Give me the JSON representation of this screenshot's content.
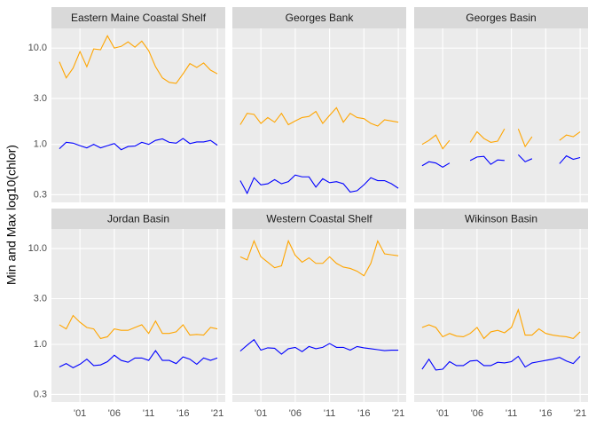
{
  "chart_data": [
    {
      "type": "line",
      "title": "Eastern Maine Coastal Shelf",
      "ylabel": "Min and Max log10(chlor)",
      "log_y": true,
      "grid": true,
      "x": [
        1998,
        1999,
        2000,
        2001,
        2002,
        2003,
        2004,
        2005,
        2006,
        2007,
        2008,
        2009,
        2010,
        2011,
        2012,
        2013,
        2014,
        2015,
        2016,
        2017,
        2018,
        2019,
        2020,
        2021
      ],
      "xlim": [
        1996.85,
        2022.15
      ],
      "xticks": [
        {
          "value": 2001,
          "label": "'01"
        },
        {
          "value": 2006,
          "label": "'06"
        },
        {
          "value": 2011,
          "label": "'11"
        },
        {
          "value": 2016,
          "label": "'16"
        },
        {
          "value": 2021,
          "label": "'21"
        }
      ],
      "ylim": [
        0.25,
        16
      ],
      "yticks": [
        0.3,
        {
          "value": 1,
          "label": "1.0"
        },
        {
          "value": 3,
          "label": "3.0"
        },
        {
          "value": 10,
          "label": "10.0"
        }
      ],
      "series": [
        {
          "color": "#ffa500",
          "values": [
            7.2,
            4.9,
            6.2,
            9.2,
            6.4,
            9.8,
            9.6,
            13.4,
            10.0,
            10.4,
            11.6,
            10.2,
            11.8,
            9.4,
            6.4,
            4.9,
            4.4,
            4.3,
            5.4,
            6.9,
            6.3,
            7.0,
            5.9,
            5.4
          ]
        },
        {
          "color": "#0000ff",
          "values": [
            0.9,
            1.05,
            1.03,
            0.97,
            0.92,
            1.0,
            0.92,
            0.97,
            1.02,
            0.88,
            0.95,
            0.96,
            1.05,
            1.0,
            1.1,
            1.14,
            1.05,
            1.03,
            1.15,
            1.02,
            1.06,
            1.06,
            1.1,
            0.98
          ]
        }
      ]
    },
    {
      "type": "line",
      "title": "Georges Bank",
      "log_y": true,
      "grid": true,
      "x": [
        1998,
        1999,
        2000,
        2001,
        2002,
        2003,
        2004,
        2005,
        2006,
        2007,
        2008,
        2009,
        2010,
        2011,
        2012,
        2013,
        2014,
        2015,
        2016,
        2017,
        2018,
        2019,
        2020,
        2021
      ],
      "xlim": [
        1996.85,
        2022.15
      ],
      "xticks": [
        {
          "value": 2001,
          "label": "'01"
        },
        {
          "value": 2006,
          "label": "'06"
        },
        {
          "value": 2011,
          "label": "'11"
        },
        {
          "value": 2016,
          "label": "'16"
        },
        {
          "value": 2021,
          "label": "'21"
        }
      ],
      "ylim": [
        0.25,
        16
      ],
      "yticks": [
        0.3,
        {
          "value": 1,
          "label": "1.0"
        },
        {
          "value": 3,
          "label": "3.0"
        },
        {
          "value": 10,
          "label": "10.0"
        }
      ],
      "series": [
        {
          "color": "#ffa500",
          "values": [
            1.6,
            2.1,
            2.05,
            1.65,
            1.9,
            1.7,
            2.1,
            1.6,
            1.75,
            1.9,
            1.95,
            2.2,
            1.65,
            2.0,
            2.4,
            1.7,
            2.1,
            1.9,
            1.85,
            1.65,
            1.55,
            1.8,
            1.75,
            1.7
          ]
        },
        {
          "color": "#0000ff",
          "values": [
            0.42,
            0.31,
            0.45,
            0.38,
            0.39,
            0.43,
            0.39,
            0.41,
            0.48,
            0.46,
            0.46,
            0.36,
            0.44,
            0.4,
            0.41,
            0.39,
            0.32,
            0.33,
            0.38,
            0.45,
            0.42,
            0.42,
            0.39,
            0.35
          ]
        }
      ]
    },
    {
      "type": "line",
      "title": "Georges Basin",
      "log_y": true,
      "grid": true,
      "x": [
        1998,
        1999,
        2000,
        2001,
        2002,
        2003,
        2004,
        2005,
        2006,
        2007,
        2008,
        2009,
        2010,
        2011,
        2012,
        2013,
        2014,
        2015,
        2016,
        2017,
        2018,
        2019,
        2020,
        2021
      ],
      "xlim": [
        1996.85,
        2022.15
      ],
      "xticks": [
        {
          "value": 2001,
          "label": "'01"
        },
        {
          "value": 2006,
          "label": "'06"
        },
        {
          "value": 2011,
          "label": "'11"
        },
        {
          "value": 2016,
          "label": "'16"
        },
        {
          "value": 2021,
          "label": "'21"
        }
      ],
      "ylim": [
        0.25,
        16
      ],
      "yticks": [
        0.3,
        {
          "value": 1,
          "label": "1.0"
        },
        {
          "value": 3,
          "label": "3.0"
        },
        {
          "value": 10,
          "label": "10.0"
        }
      ],
      "series": [
        {
          "color": "#ffa500",
          "values": [
            1.0,
            1.1,
            1.25,
            0.9,
            1.1,
            null,
            null,
            1.05,
            1.35,
            1.15,
            1.05,
            1.08,
            1.45,
            null,
            1.45,
            0.95,
            1.2,
            null,
            null,
            null,
            1.1,
            1.25,
            1.2,
            1.35
          ]
        },
        {
          "color": "#0000ff",
          "values": [
            0.6,
            0.66,
            0.64,
            0.58,
            0.64,
            null,
            null,
            0.68,
            0.74,
            0.75,
            0.62,
            0.69,
            0.68,
            null,
            0.78,
            0.66,
            0.71,
            null,
            null,
            null,
            0.63,
            0.76,
            0.7,
            0.73
          ]
        }
      ]
    },
    {
      "type": "line",
      "title": "Jordan Basin",
      "log_y": true,
      "grid": true,
      "x": [
        1998,
        1999,
        2000,
        2001,
        2002,
        2003,
        2004,
        2005,
        2006,
        2007,
        2008,
        2009,
        2010,
        2011,
        2012,
        2013,
        2014,
        2015,
        2016,
        2017,
        2018,
        2019,
        2020,
        2021
      ],
      "xlim": [
        1996.85,
        2022.15
      ],
      "xticks": [
        {
          "value": 2001,
          "label": "'01"
        },
        {
          "value": 2006,
          "label": "'06"
        },
        {
          "value": 2011,
          "label": "'11"
        },
        {
          "value": 2016,
          "label": "'16"
        },
        {
          "value": 2021,
          "label": "'21"
        }
      ],
      "ylim": [
        0.25,
        16
      ],
      "yticks": [
        0.3,
        {
          "value": 1,
          "label": "1.0"
        },
        {
          "value": 3,
          "label": "3.0"
        },
        {
          "value": 10,
          "label": "10.0"
        }
      ],
      "series": [
        {
          "color": "#ffa500",
          "values": [
            1.6,
            1.45,
            2.0,
            1.7,
            1.5,
            1.45,
            1.15,
            1.2,
            1.45,
            1.4,
            1.4,
            1.5,
            1.6,
            1.3,
            1.75,
            1.3,
            1.3,
            1.35,
            1.6,
            1.25,
            1.27,
            1.25,
            1.5,
            1.45
          ]
        },
        {
          "color": "#0000ff",
          "values": [
            0.58,
            0.63,
            0.57,
            0.62,
            0.7,
            0.6,
            0.61,
            0.66,
            0.77,
            0.68,
            0.65,
            0.72,
            0.72,
            0.68,
            0.86,
            0.68,
            0.68,
            0.63,
            0.74,
            0.7,
            0.62,
            0.72,
            0.68,
            0.72
          ]
        }
      ]
    },
    {
      "type": "line",
      "title": "Western Coastal Shelf",
      "log_y": true,
      "grid": true,
      "x": [
        1998,
        1999,
        2000,
        2001,
        2002,
        2003,
        2004,
        2005,
        2006,
        2007,
        2008,
        2009,
        2010,
        2011,
        2012,
        2013,
        2014,
        2015,
        2016,
        2017,
        2018,
        2019,
        2020,
        2021
      ],
      "xlim": [
        1996.85,
        2022.15
      ],
      "xticks": [
        {
          "value": 2001,
          "label": "'01"
        },
        {
          "value": 2006,
          "label": "'06"
        },
        {
          "value": 2011,
          "label": "'11"
        },
        {
          "value": 2016,
          "label": "'16"
        },
        {
          "value": 2021,
          "label": "'21"
        }
      ],
      "ylim": [
        0.25,
        16
      ],
      "yticks": [
        0.3,
        {
          "value": 1,
          "label": "1.0"
        },
        {
          "value": 3,
          "label": "3.0"
        },
        {
          "value": 10,
          "label": "10.0"
        }
      ],
      "series": [
        {
          "color": "#ffa500",
          "values": [
            8.2,
            7.6,
            12.0,
            8.2,
            7.2,
            6.3,
            6.6,
            12.0,
            8.5,
            7.2,
            8.0,
            7.0,
            7.0,
            8.2,
            7.0,
            6.4,
            6.2,
            5.8,
            5.2,
            7.0,
            12.0,
            8.8,
            8.6,
            8.4
          ]
        },
        {
          "color": "#0000ff",
          "values": [
            0.85,
            0.98,
            1.12,
            0.87,
            0.92,
            0.91,
            0.79,
            0.9,
            0.93,
            0.84,
            0.95,
            0.9,
            0.93,
            1.02,
            0.93,
            0.93,
            0.87,
            0.95,
            0.92,
            0.9,
            0.88,
            0.86,
            0.87,
            0.87
          ]
        }
      ]
    },
    {
      "type": "line",
      "title": "Wikinson Basin",
      "log_y": true,
      "grid": true,
      "x": [
        1998,
        1999,
        2000,
        2001,
        2002,
        2003,
        2004,
        2005,
        2006,
        2007,
        2008,
        2009,
        2010,
        2011,
        2012,
        2013,
        2014,
        2015,
        2016,
        2017,
        2018,
        2019,
        2020,
        2021
      ],
      "xlim": [
        1996.85,
        2022.15
      ],
      "xticks": [
        {
          "value": 2001,
          "label": "'01"
        },
        {
          "value": 2006,
          "label": "'06"
        },
        {
          "value": 2011,
          "label": "'11"
        },
        {
          "value": 2016,
          "label": "'16"
        },
        {
          "value": 2021,
          "label": "'21"
        }
      ],
      "ylim": [
        0.25,
        16
      ],
      "yticks": [
        0.3,
        {
          "value": 1,
          "label": "1.0"
        },
        {
          "value": 3,
          "label": "3.0"
        },
        {
          "value": 10,
          "label": "10.0"
        }
      ],
      "series": [
        {
          "color": "#ffa500",
          "values": [
            1.5,
            1.6,
            1.5,
            1.2,
            1.3,
            1.22,
            1.2,
            1.3,
            1.5,
            1.15,
            1.35,
            1.4,
            1.32,
            1.5,
            2.3,
            1.25,
            1.25,
            1.45,
            1.3,
            1.25,
            1.22,
            1.2,
            1.15,
            1.35
          ]
        },
        {
          "color": "#0000ff",
          "values": [
            0.55,
            0.7,
            0.54,
            0.55,
            0.66,
            0.6,
            0.6,
            0.67,
            0.68,
            0.6,
            0.6,
            0.65,
            0.64,
            0.66,
            0.75,
            0.58,
            0.64,
            0.66,
            0.68,
            0.7,
            0.73,
            0.67,
            0.63,
            0.75
          ]
        }
      ]
    }
  ]
}
